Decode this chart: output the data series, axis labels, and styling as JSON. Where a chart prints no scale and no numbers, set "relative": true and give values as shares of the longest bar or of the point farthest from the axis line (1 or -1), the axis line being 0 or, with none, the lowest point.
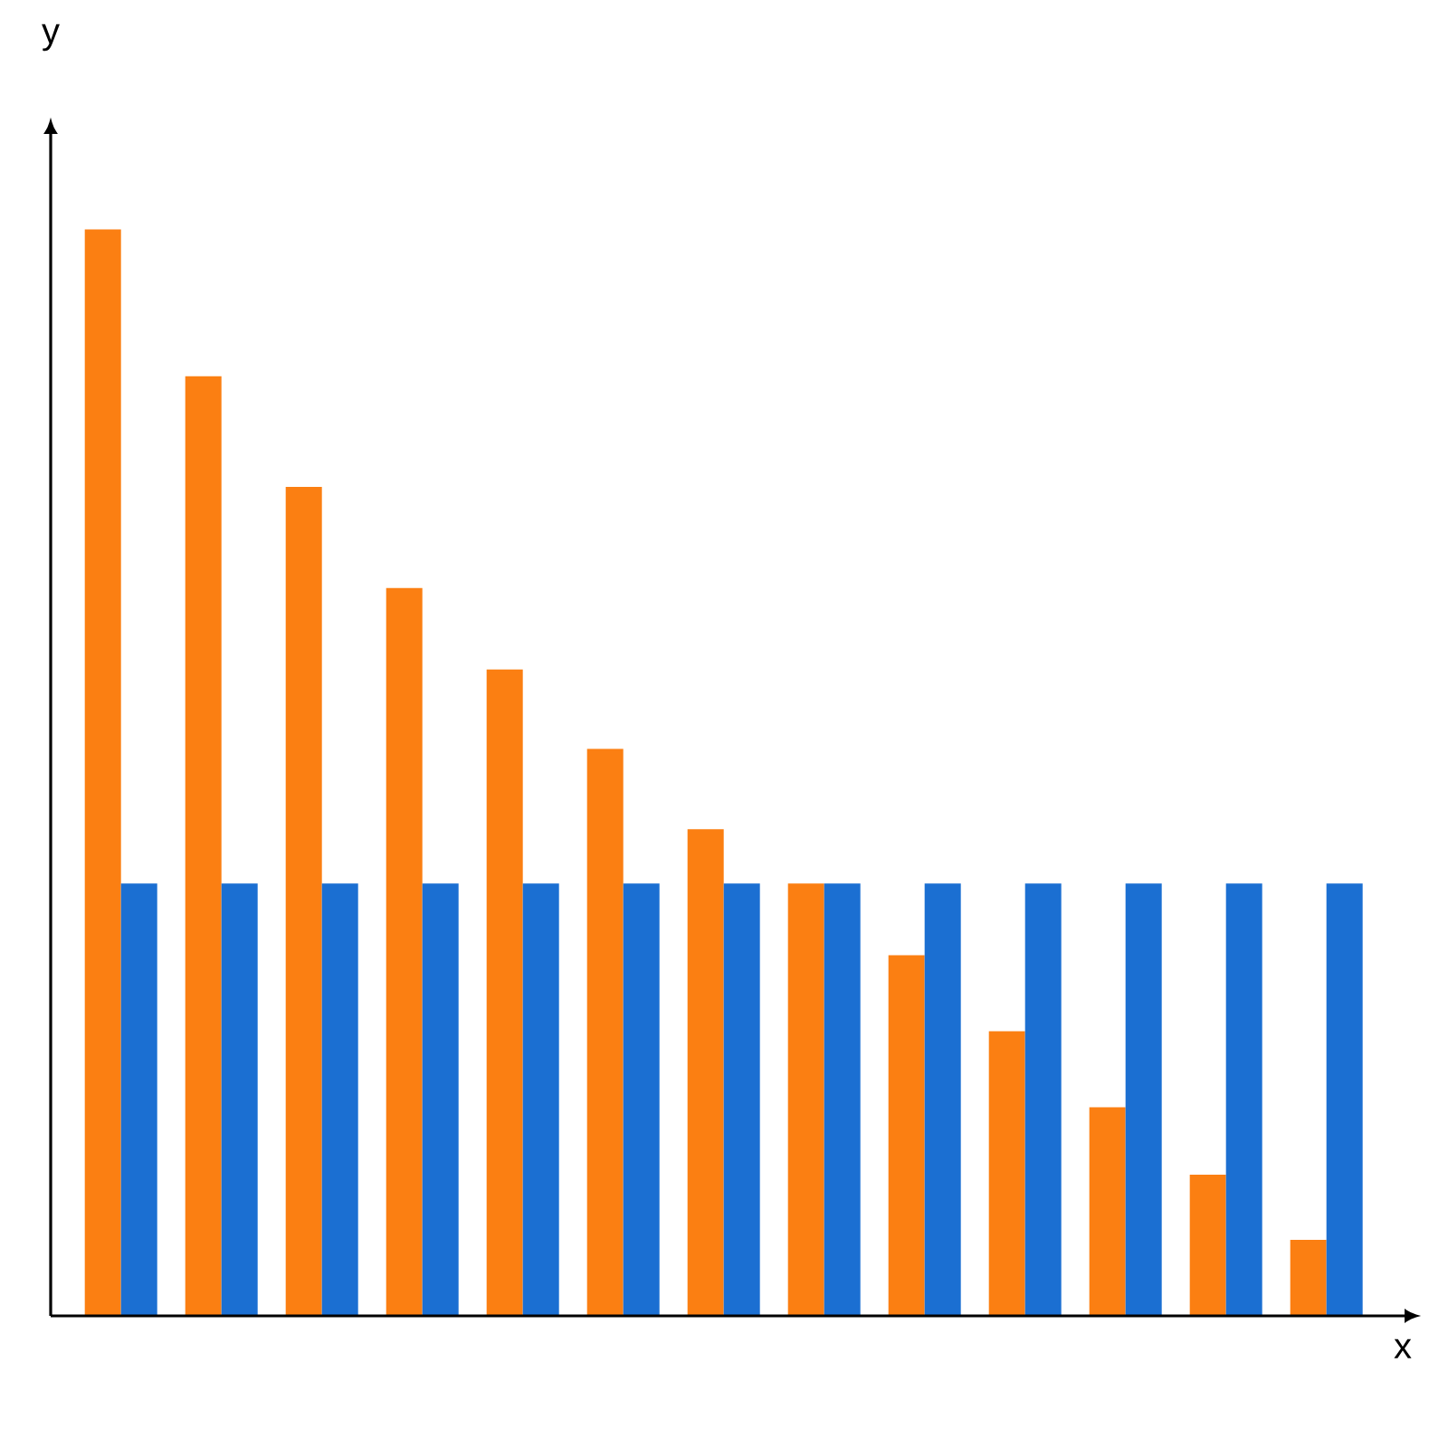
{
  "chart_data": {
    "type": "bar",
    "relative": true,
    "xlabel": "x",
    "ylabel": "y",
    "categories": [
      null,
      null,
      null,
      null,
      null,
      null,
      null,
      null,
      null,
      null,
      null,
      null,
      null
    ],
    "series": [
      {
        "color": "#fb7f12",
        "values": [
          1,
          0.865,
          0.763,
          0.67,
          0.595,
          0.522,
          0.448,
          0.398,
          0.332,
          0.262,
          0.192,
          0.13,
          0.07
        ]
      },
      {
        "color": "#1b6fd2",
        "values": [
          0.398,
          0.398,
          0.398,
          0.398,
          0.398,
          0.398,
          0.398,
          0.398,
          0.398,
          0.398,
          0.398,
          0.398,
          0.398
        ]
      }
    ]
  }
}
